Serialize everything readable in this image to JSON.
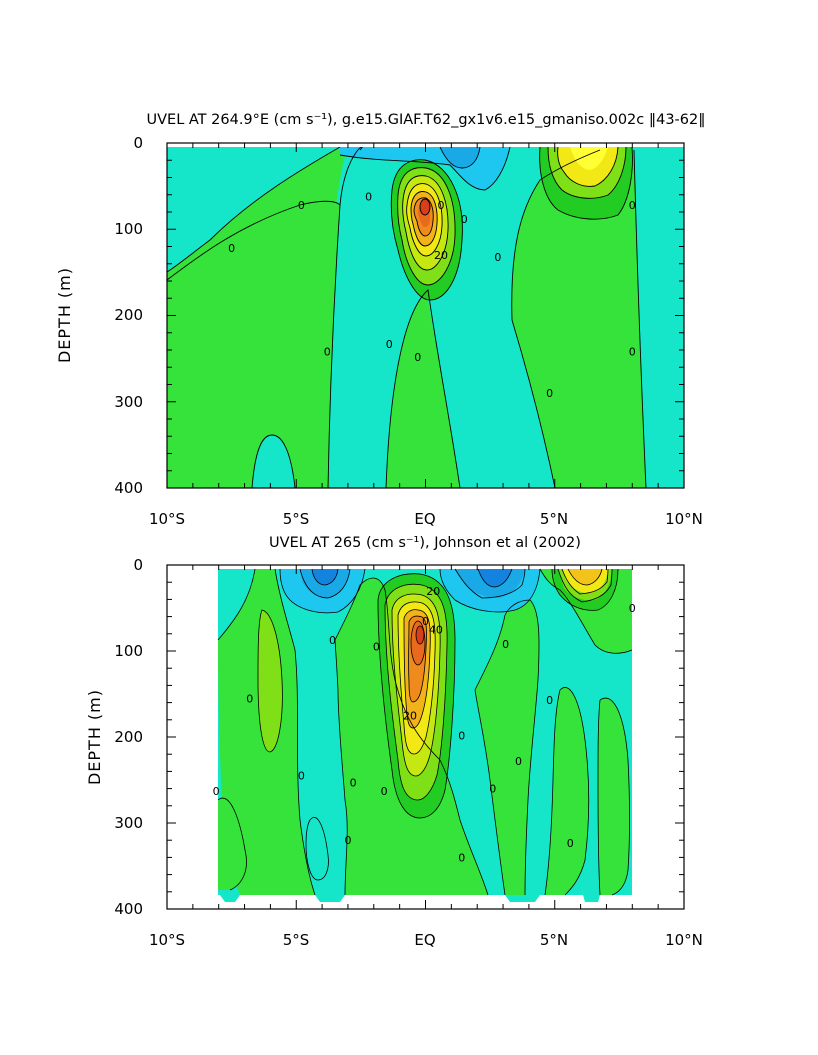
{
  "chart_data": [
    {
      "type": "contour",
      "title": "UVEL AT 264.9°E (cm s⁻¹), g.e15.GIAF.T62_gx1v6.e15_gmaniso.002c ‖43-62‖",
      "ylabel": "DEPTH (m)",
      "xlabel": "",
      "xlim": [
        -10,
        10
      ],
      "ylim": [
        400,
        0
      ],
      "y_inverted": true,
      "xticks": [
        "10°S",
        "5°S",
        "EQ",
        "5°N",
        "10°N"
      ],
      "yticks": [
        "0",
        "100",
        "200",
        "300",
        "400"
      ],
      "contour_labels": [
        {
          "text": "0",
          "x": -7.5,
          "y": 122
        },
        {
          "text": "0",
          "x": -4.8,
          "y": 72
        },
        {
          "text": "0",
          "x": -2.2,
          "y": 62
        },
        {
          "text": "0",
          "x": 0.6,
          "y": 72
        },
        {
          "text": "0",
          "x": 1.5,
          "y": 88
        },
        {
          "text": "20",
          "x": 0.6,
          "y": 130
        },
        {
          "text": "0",
          "x": 2.8,
          "y": 132
        },
        {
          "text": "0",
          "x": 8.0,
          "y": 72
        },
        {
          "text": "0",
          "x": -3.8,
          "y": 242
        },
        {
          "text": "0",
          "x": -1.4,
          "y": 233
        },
        {
          "text": "0",
          "x": -0.3,
          "y": 248
        },
        {
          "text": "0",
          "x": 4.8,
          "y": 290
        },
        {
          "text": "0",
          "x": 8.0,
          "y": 242
        }
      ],
      "features": [
        {
          "kind": "core",
          "x": 0.0,
          "y": 75,
          "max_value": 60
        },
        {
          "kind": "eastward",
          "x": 6.3,
          "y": 20
        },
        {
          "kind": "westward",
          "x": 2.0,
          "y": 20
        }
      ]
    },
    {
      "type": "contour",
      "title": "UVEL AT 265 (cm s⁻¹), Johnson et al (2002)",
      "ylabel": "DEPTH (m)",
      "xlabel": "",
      "xlim": [
        -10,
        10
      ],
      "ylim": [
        400,
        0
      ],
      "y_inverted": true,
      "data_xrange": [
        -8,
        8
      ],
      "xticks": [
        "10°S",
        "5°S",
        "EQ",
        "5°N",
        "10°N"
      ],
      "yticks": [
        "0",
        "100",
        "200",
        "300",
        "400"
      ],
      "contour_labels": [
        {
          "text": "20",
          "x": 0.3,
          "y": 30
        },
        {
          "text": "40",
          "x": 0.4,
          "y": 75
        },
        {
          "text": "20",
          "x": -0.6,
          "y": 175
        },
        {
          "text": "0",
          "x": -3.6,
          "y": 87
        },
        {
          "text": "0",
          "x": -1.9,
          "y": 95
        },
        {
          "text": "0",
          "x": -6.8,
          "y": 155
        },
        {
          "text": "0",
          "x": -8.1,
          "y": 263
        },
        {
          "text": "0",
          "x": -4.8,
          "y": 245
        },
        {
          "text": "0",
          "x": -2.8,
          "y": 253
        },
        {
          "text": "0",
          "x": -3.0,
          "y": 320
        },
        {
          "text": "0",
          "x": -1.6,
          "y": 263
        },
        {
          "text": "0",
          "x": 1.4,
          "y": 198
        },
        {
          "text": "0",
          "x": 2.6,
          "y": 260
        },
        {
          "text": "0",
          "x": 3.6,
          "y": 228
        },
        {
          "text": "0",
          "x": 1.4,
          "y": 340
        },
        {
          "text": "0",
          "x": 3.1,
          "y": 92
        },
        {
          "text": "0",
          "x": 4.8,
          "y": 157
        },
        {
          "text": "0",
          "x": 5.6,
          "y": 323
        },
        {
          "text": "0",
          "x": 8.0,
          "y": 50
        },
        {
          "text": "0",
          "x": 0.0,
          "y": 65
        }
      ],
      "features": [
        {
          "kind": "core",
          "x": 0.0,
          "y": 65,
          "max_value": 60
        },
        {
          "kind": "eastward",
          "x": 6.0,
          "y": 20
        },
        {
          "kind": "westward",
          "x": 2.6,
          "y": 20
        },
        {
          "kind": "westward",
          "x": -3.5,
          "y": 15
        }
      ]
    }
  ]
}
